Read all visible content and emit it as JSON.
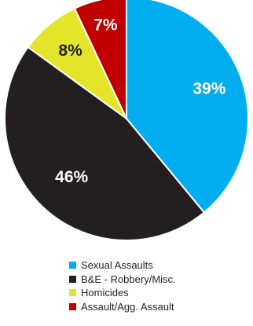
{
  "chart_data": {
    "type": "pie",
    "start_angle_deg": 0,
    "direction": "clockwise",
    "slices": [
      {
        "name": "Sexual Assaults",
        "value": 39,
        "label": "39%",
        "color": "#00aeef"
      },
      {
        "name": "B&E - Robbery/Misc.",
        "value": 46,
        "label": "46%",
        "color": "#231f20"
      },
      {
        "name": "Homicides",
        "value": 8,
        "label": "8%",
        "color": "#e4e52b"
      },
      {
        "name": "Assault/Agg. Assault",
        "value": 7,
        "label": "7%",
        "color": "#c00000"
      }
    ],
    "legend_position": "bottom"
  }
}
